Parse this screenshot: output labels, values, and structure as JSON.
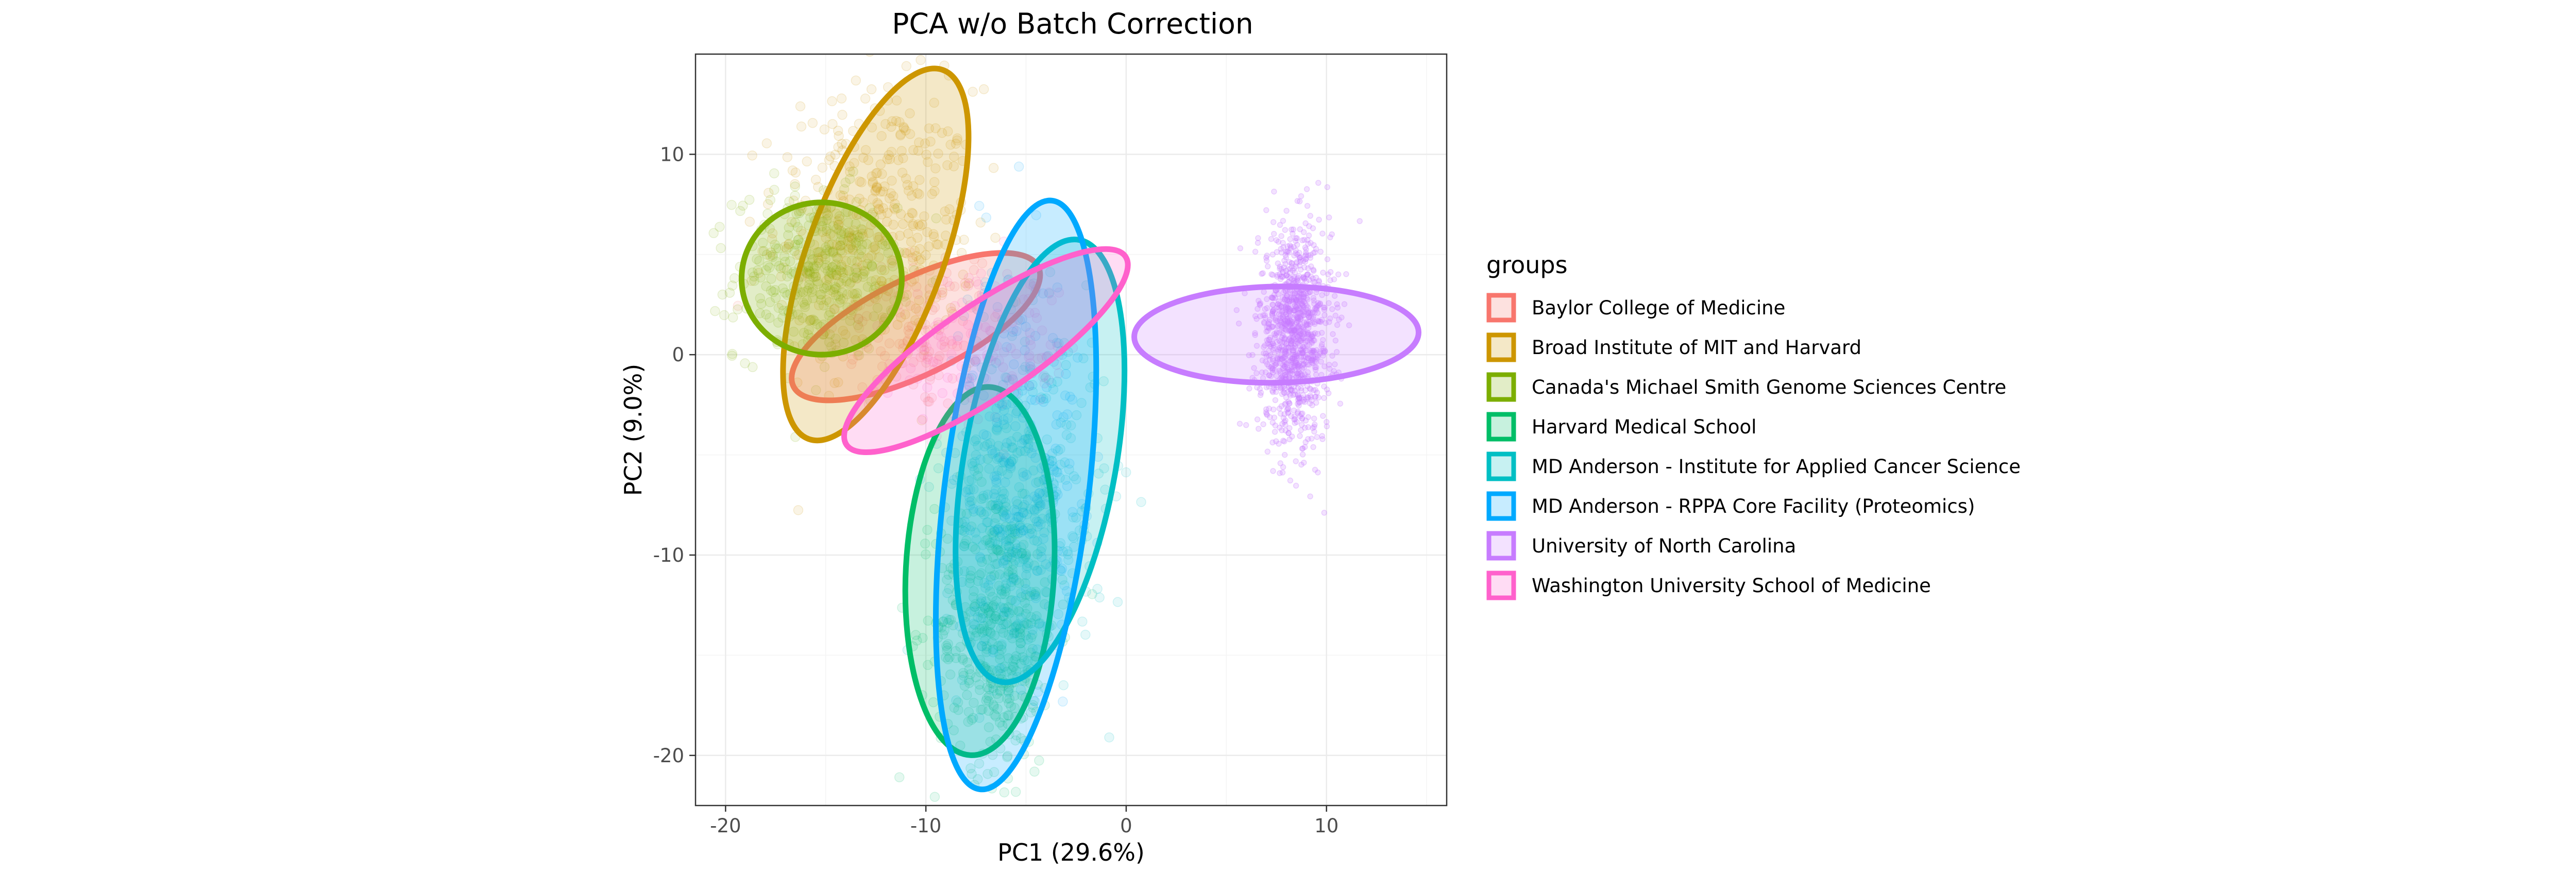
{
  "chart_data": {
    "type": "scatter",
    "title": "PCA w/o Batch Correction",
    "xlabel": "PC1 (29.6%)",
    "ylabel": "PC2 (9.0%)",
    "xlim": [
      -21.5,
      16.0
    ],
    "ylim": [
      -22.5,
      15.0
    ],
    "xticks": [
      -20,
      -10,
      0,
      10
    ],
    "yticks": [
      -20,
      -10,
      0,
      10
    ],
    "xtick_labels": [
      "-20",
      "-10",
      "0",
      "10"
    ],
    "ytick_labels": [
      "-20",
      "-10",
      "0",
      "10"
    ],
    "grid": true,
    "legend": {
      "title": "groups",
      "position": "right"
    },
    "series": [
      {
        "name": "Baylor College of Medicine",
        "color": "#F8766D",
        "center": [
          -10.5,
          1.4
        ],
        "spread": [
          2.2,
          2.2
        ],
        "n_points": 120,
        "ellipse": {
          "center": [
            -10.5,
            1.4
          ],
          "semi_axes": [
            6.8,
            2.4
          ],
          "angle_deg": -26
        }
      },
      {
        "name": "Broad Institute of MIT and Harvard",
        "color": "#CD9600",
        "center": [
          -12.5,
          6.5
        ],
        "spread": [
          2.5,
          3.4
        ],
        "n_points": 380,
        "ellipse": {
          "center": [
            -12.5,
            5.0
          ],
          "semi_axes": [
            3.4,
            9.8
          ],
          "angle_deg": 20
        }
      },
      {
        "name": "Canada's Michael Smith Genome Sciences Centre",
        "color": "#7CAE00",
        "center": [
          -15.5,
          4.0
        ],
        "spread": [
          2.0,
          2.1
        ],
        "n_points": 340,
        "ellipse": {
          "center": [
            -15.2,
            3.8
          ],
          "semi_axes": [
            4.0,
            3.8
          ],
          "angle_deg": 0
        }
      },
      {
        "name": "Harvard Medical School",
        "color": "#00BE67",
        "center": [
          -6.5,
          -13.5
        ],
        "spread": [
          1.5,
          3.6
        ],
        "n_points": 460,
        "ellipse": {
          "center": [
            -7.3,
            -10.8
          ],
          "semi_axes": [
            3.7,
            9.2
          ],
          "angle_deg": 3
        }
      },
      {
        "name": "MD Anderson - Institute for Applied Cancer Science",
        "color": "#00BFC4",
        "center": [
          -5.0,
          -7.0
        ],
        "spread": [
          2.0,
          4.2
        ],
        "n_points": 340,
        "ellipse": {
          "center": [
            -4.3,
            -5.3
          ],
          "semi_axes": [
            3.8,
            11.2
          ],
          "angle_deg": 10
        }
      },
      {
        "name": "MD Anderson - RPPA Core Facility (Proteomics)",
        "color": "#00A9FF",
        "center": [
          -5.5,
          -5.0
        ],
        "spread": [
          1.6,
          5.0
        ],
        "n_points": 200,
        "ellipse": {
          "center": [
            -5.5,
            -7.0
          ],
          "semi_axes": [
            3.6,
            14.8
          ],
          "angle_deg": 7
        }
      },
      {
        "name": "University of North Carolina",
        "color": "#C77CFF",
        "center": [
          8.4,
          1.0
        ],
        "spread": [
          0.9,
          2.6
        ],
        "n_points": 1100,
        "ellipse": {
          "center": [
            7.5,
            1.0
          ],
          "semi_axes": [
            7.1,
            2.4
          ],
          "angle_deg": -1
        }
      },
      {
        "name": "Washington University School of Medicine",
        "color": "#FF61CC",
        "center": [
          -7.0,
          0.0
        ],
        "spread": [
          2.4,
          1.9
        ],
        "n_points": 130,
        "ellipse": {
          "center": [
            -7.0,
            0.2
          ],
          "semi_axes": [
            8.4,
            2.3
          ],
          "angle_deg": -34
        }
      }
    ]
  }
}
